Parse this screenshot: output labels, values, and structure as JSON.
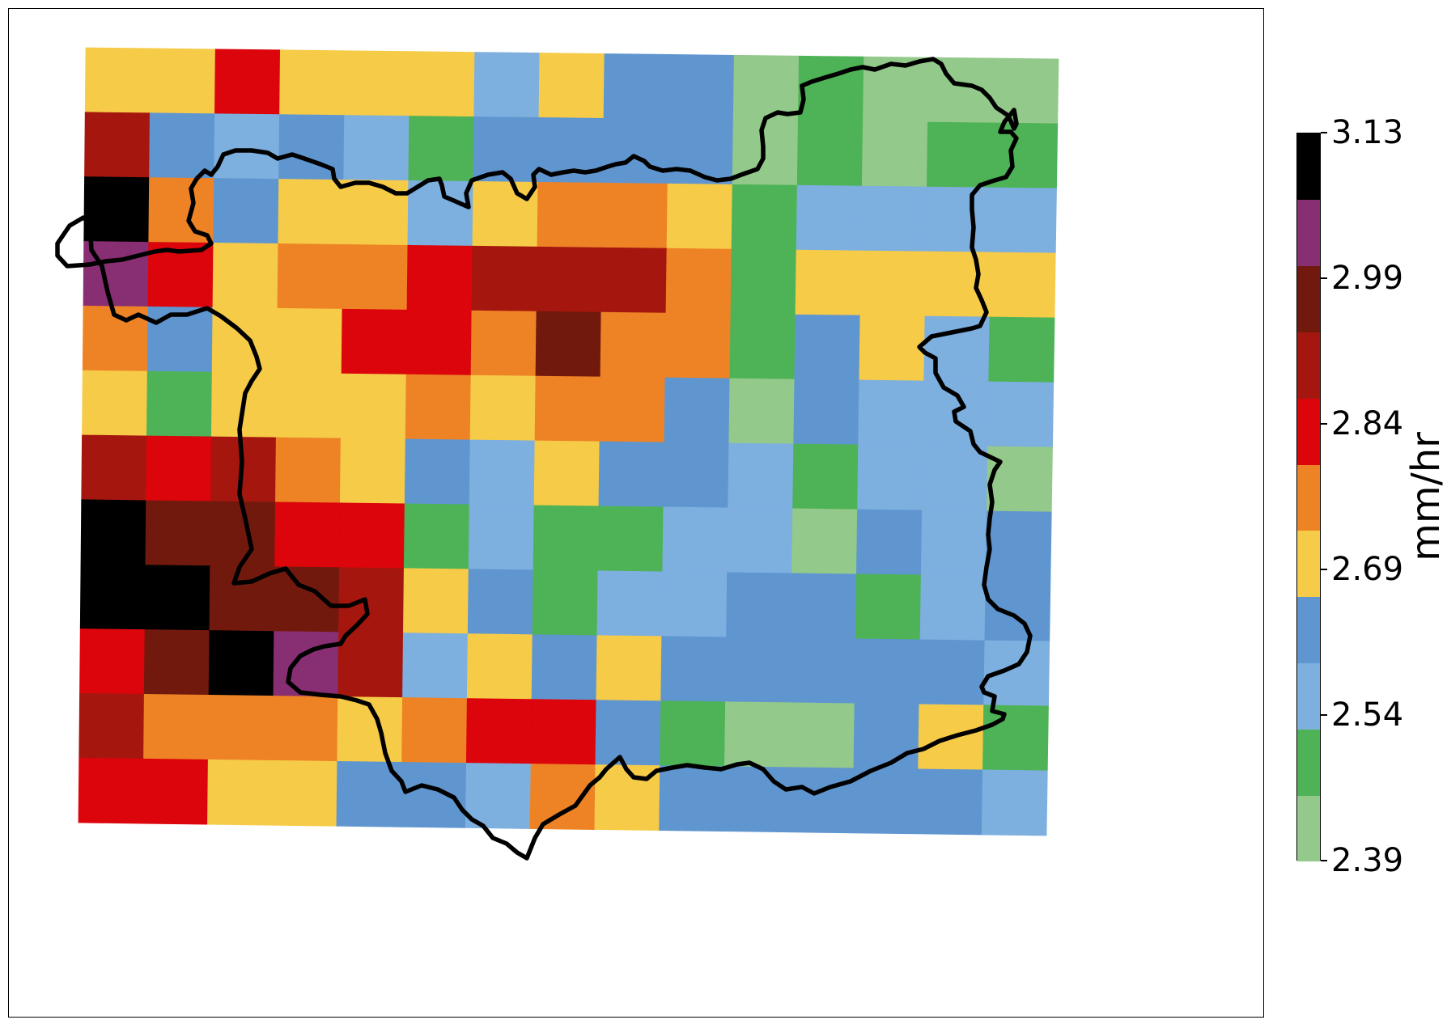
{
  "colorbar": {
    "unit": "mm/hr",
    "ticks": [
      "2.39",
      "2.54",
      "2.69",
      "2.84",
      "2.99",
      "3.13"
    ],
    "bins": [
      {
        "color": "#93c98a"
      },
      {
        "color": "#4eb356"
      },
      {
        "color": "#7dafdf"
      },
      {
        "color": "#6096d0"
      },
      {
        "color": "#f6cb48"
      },
      {
        "color": "#ee8326"
      },
      {
        "color": "#dc050c"
      },
      {
        "color": "#a5170e"
      },
      {
        "color": "#72190e"
      },
      {
        "color": "#882e72"
      },
      {
        "color": "#000000"
      }
    ]
  },
  "grid": {
    "rows": 12,
    "cols": 15,
    "bin_index": [
      [
        4,
        4,
        6,
        4,
        4,
        4,
        2,
        4,
        3,
        3,
        0,
        1,
        0,
        0,
        0
      ],
      [
        7,
        3,
        2,
        3,
        2,
        1,
        3,
        3,
        3,
        3,
        0,
        1,
        0,
        1,
        1
      ],
      [
        10,
        5,
        3,
        4,
        4,
        2,
        4,
        5,
        5,
        4,
        1,
        2,
        2,
        2,
        2
      ],
      [
        9,
        6,
        4,
        5,
        5,
        6,
        7,
        7,
        7,
        5,
        1,
        4,
        4,
        4,
        4
      ],
      [
        5,
        3,
        4,
        4,
        6,
        6,
        5,
        8,
        5,
        5,
        1,
        3,
        4,
        2,
        1
      ],
      [
        4,
        1,
        4,
        4,
        4,
        5,
        4,
        5,
        5,
        3,
        0,
        3,
        2,
        2,
        2
      ],
      [
        7,
        6,
        7,
        5,
        4,
        3,
        2,
        4,
        3,
        3,
        2,
        1,
        2,
        2,
        0
      ],
      [
        10,
        8,
        8,
        6,
        6,
        1,
        2,
        1,
        1,
        2,
        2,
        0,
        3,
        2,
        3
      ],
      [
        10,
        10,
        8,
        8,
        7,
        4,
        3,
        1,
        2,
        2,
        3,
        3,
        1,
        2,
        3
      ],
      [
        6,
        8,
        10,
        9,
        7,
        2,
        4,
        3,
        4,
        3,
        3,
        3,
        3,
        3,
        2
      ],
      [
        7,
        5,
        5,
        5,
        4,
        5,
        6,
        6,
        3,
        1,
        0,
        0,
        3,
        4,
        1
      ],
      [
        6,
        6,
        4,
        4,
        3,
        3,
        2,
        5,
        4,
        3,
        3,
        3,
        3,
        3,
        2
      ]
    ]
  },
  "region_outline": {
    "type": "polygon",
    "stroke": "#000000"
  }
}
